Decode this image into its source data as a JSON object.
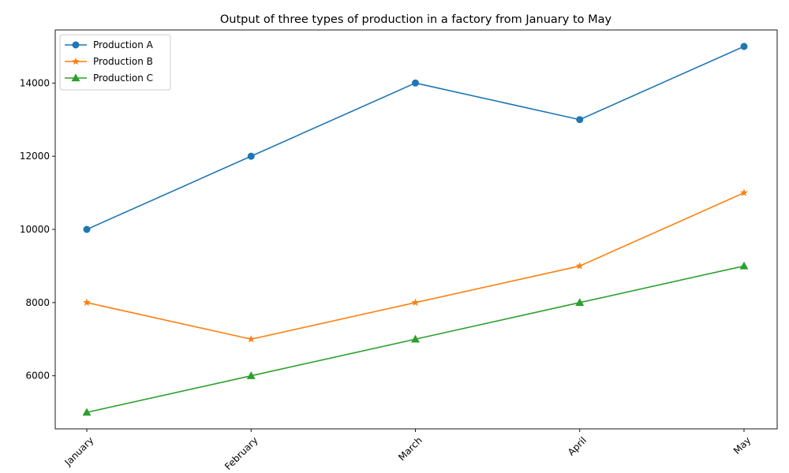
{
  "chart_data": {
    "type": "line",
    "title": "Output of three types of production in a factory from January to May",
    "xlabel": "",
    "ylabel": "",
    "categories": [
      "January",
      "February",
      "March",
      "April",
      "May"
    ],
    "ylim": [
      4550,
      15450
    ],
    "yticks": [
      6000,
      8000,
      10000,
      12000,
      14000
    ],
    "ytick_labels": [
      "6000",
      "8000",
      "10000",
      "12000",
      "14000"
    ],
    "xtick_rotation_deg": 45,
    "grid": false,
    "legend_position": "top-left",
    "series": [
      {
        "name": "Production A",
        "values": [
          10000,
          12000,
          14000,
          13000,
          15000
        ],
        "color": "#1f77b4",
        "marker": "circle"
      },
      {
        "name": "Production B",
        "values": [
          8000,
          7000,
          8000,
          9000,
          11000
        ],
        "color": "#ff7f0e",
        "marker": "star"
      },
      {
        "name": "Production C",
        "values": [
          5000,
          6000,
          7000,
          8000,
          9000
        ],
        "color": "#2ca02c",
        "marker": "triangle"
      }
    ]
  }
}
